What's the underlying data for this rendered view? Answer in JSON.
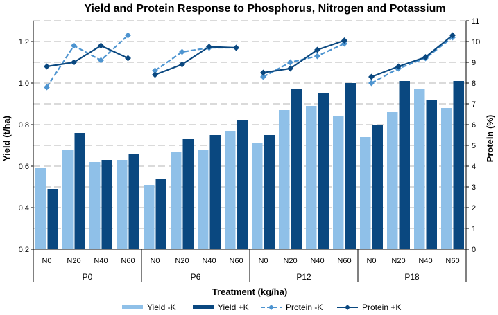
{
  "chart_data": {
    "type": "bar",
    "title": "Yield and Protein Response to Phosphorus, Nitrogen and Potassium",
    "xlabel": "Treatment (kg/ha)",
    "ylabel": "Yield (t/ha)",
    "y2label": "Protein (%)",
    "ylim": [
      0.2,
      1.3
    ],
    "y_ticks": [
      "0.2",
      "0.4",
      "0.6",
      "0.8",
      "1.0",
      "1.2"
    ],
    "y2lim": [
      0,
      11
    ],
    "y2_ticks": [
      "0",
      "1",
      "2",
      "3",
      "4",
      "5",
      "6",
      "7",
      "8",
      "9",
      "10",
      "11"
    ],
    "grid": true,
    "legend_position": "bottom",
    "groups": [
      {
        "label": "P0",
        "categories": [
          "N0",
          "N20",
          "N40",
          "N60"
        ]
      },
      {
        "label": "P6",
        "categories": [
          "N0",
          "N20",
          "N40",
          "N60"
        ]
      },
      {
        "label": "P12",
        "categories": [
          "N0",
          "N20",
          "N40",
          "N60"
        ]
      },
      {
        "label": "P18",
        "categories": [
          "N0",
          "N20",
          "N40",
          "N60"
        ]
      }
    ],
    "series": [
      {
        "name": "Yield -K",
        "kind": "bar",
        "axis": "left",
        "color": "#8fc0e8",
        "values": [
          0.59,
          0.68,
          0.62,
          0.63,
          0.51,
          0.67,
          0.68,
          0.77,
          0.71,
          0.87,
          0.89,
          0.84,
          0.74,
          0.86,
          0.97,
          0.88
        ]
      },
      {
        "name": "Yield +K",
        "kind": "bar",
        "axis": "left",
        "color": "#0a4880",
        "values": [
          0.49,
          0.76,
          0.63,
          0.66,
          0.54,
          0.73,
          0.75,
          0.82,
          0.75,
          0.97,
          0.95,
          1.0,
          0.8,
          1.01,
          0.92,
          1.01
        ]
      },
      {
        "name": "Protein -K",
        "kind": "line",
        "axis": "right",
        "color": "#4d94d0",
        "dashed": true,
        "marker": "diamond",
        "values": [
          7.8,
          9.8,
          9.1,
          10.3,
          8.6,
          9.5,
          9.7,
          9.7,
          8.3,
          9.0,
          9.3,
          9.9,
          8.0,
          8.7,
          9.2,
          10.2
        ]
      },
      {
        "name": "Protein +K",
        "kind": "line",
        "axis": "right",
        "color": "#0a4880",
        "dashed": false,
        "marker": "diamond",
        "values": [
          8.8,
          9.0,
          9.8,
          9.2,
          8.4,
          8.9,
          9.75,
          9.7,
          8.5,
          8.7,
          9.6,
          10.05,
          8.3,
          8.8,
          9.25,
          10.3
        ]
      }
    ]
  }
}
